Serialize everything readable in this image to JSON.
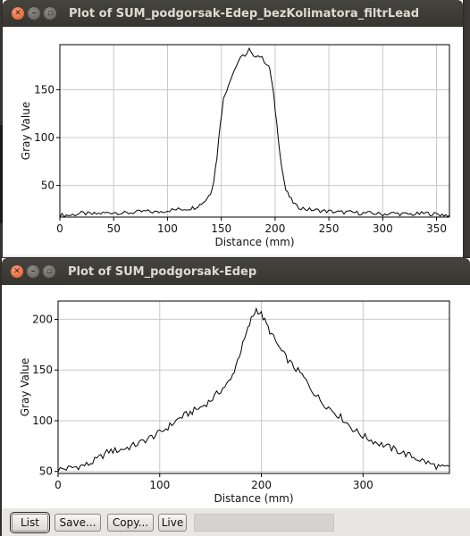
{
  "windows": [
    {
      "title": "Plot of SUM_podgorsak-Edep_bezKolimatora_filtrLead",
      "xlabel": "Distance (mm)",
      "ylabel": "Gray Value",
      "xticks": [
        "0",
        "50",
        "100",
        "150",
        "200",
        "250",
        "300",
        "350"
      ],
      "yticks": [
        "50",
        "100",
        "150"
      ]
    },
    {
      "title": "Plot of SUM_podgorsak-Edep",
      "xlabel": "Distance (mm)",
      "ylabel": "Gray Value",
      "xticks": [
        "0",
        "100",
        "200",
        "300"
      ],
      "yticks": [
        "50",
        "100",
        "150",
        "200"
      ]
    }
  ],
  "buttons": {
    "list": "List",
    "save": "Save...",
    "copy": "Copy...",
    "live": "Live"
  },
  "chart_data": [
    {
      "type": "line",
      "title": "Plot of SUM_podgorsak-Edep_bezKolimatora_filtrLead",
      "xlabel": "Distance (mm)",
      "ylabel": "Gray Value",
      "xlim": [
        0,
        362
      ],
      "ylim": [
        17,
        197
      ],
      "grid": true,
      "series": [
        {
          "x": [
            0,
            10,
            20,
            30,
            40,
            50,
            60,
            70,
            80,
            90,
            100,
            110,
            120,
            125,
            130,
            135,
            140,
            143,
            146,
            149,
            152,
            155,
            158,
            162,
            166,
            170,
            174,
            176,
            178,
            182,
            186,
            190,
            194,
            196,
            198,
            200,
            203,
            206,
            210,
            215,
            220,
            230,
            240,
            250,
            260,
            270,
            280,
            290,
            300,
            310,
            320,
            330,
            340,
            350,
            362
          ],
          "y": [
            19,
            19,
            21,
            20,
            21,
            22,
            21,
            22,
            23,
            22,
            24,
            25,
            26,
            27,
            30,
            34,
            42,
            55,
            80,
            115,
            140,
            150,
            160,
            170,
            180,
            185,
            188,
            192,
            187,
            186,
            185,
            180,
            175,
            165,
            150,
            130,
            100,
            70,
            45,
            35,
            28,
            25,
            24,
            23,
            22,
            22,
            21,
            21,
            20,
            21,
            20,
            20,
            21,
            20,
            19
          ]
        }
      ]
    },
    {
      "type": "line",
      "title": "Plot of SUM_podgorsak-Edep",
      "xlabel": "Distance (mm)",
      "ylabel": "Gray Value",
      "xlim": [
        0,
        385
      ],
      "ylim": [
        48,
        218
      ],
      "grid": true,
      "series": [
        {
          "x": [
            0,
            10,
            20,
            30,
            40,
            50,
            60,
            70,
            80,
            90,
            100,
            110,
            120,
            130,
            140,
            150,
            160,
            170,
            175,
            180,
            185,
            190,
            195,
            200,
            205,
            210,
            220,
            230,
            240,
            250,
            260,
            270,
            280,
            290,
            300,
            310,
            320,
            330,
            340,
            350,
            360,
            370,
            380,
            385
          ],
          "y": [
            52,
            53,
            55,
            57,
            63,
            70,
            71,
            74,
            78,
            83,
            88,
            95,
            103,
            108,
            113,
            120,
            130,
            140,
            155,
            170,
            185,
            200,
            210,
            205,
            195,
            185,
            168,
            155,
            145,
            130,
            118,
            110,
            102,
            92,
            85,
            80,
            76,
            72,
            68,
            64,
            60,
            56,
            53,
            55
          ]
        }
      ]
    }
  ]
}
